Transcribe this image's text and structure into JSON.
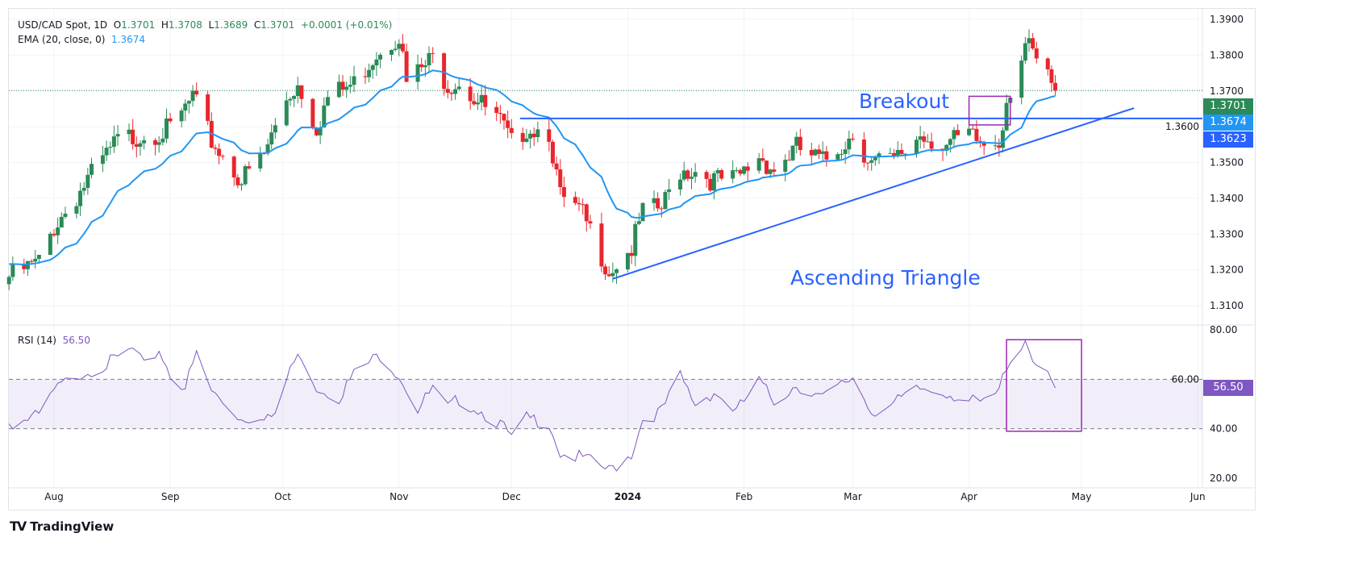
{
  "header": {
    "symbol": "USD/CAD Spot, 1D",
    "o_label": "O",
    "open": "1.3701",
    "h_label": "H",
    "high": "1.3708",
    "l_label": "L",
    "low": "1.3689",
    "c_label": "C",
    "close": "1.3701",
    "change": "+0.0001 (+0.01%)",
    "ema_label": "EMA (20, close, 0)",
    "ema_value": "1.3674",
    "rsi_label": "RSI (14)",
    "rsi_value": "56.50"
  },
  "price_labels": {
    "last": "1.3701",
    "ema": "1.3674",
    "resistance": "1.3623",
    "rsi": "56.50"
  },
  "colors": {
    "up": "#2b8a57",
    "down": "#e8262c",
    "ema": "#2196f3",
    "trend": "#2962ff",
    "rsi": "#7e57c2",
    "box": "#9c27b0"
  },
  "brand": "TradingView",
  "chart_data": {
    "type": "candlestick",
    "title": "USD/CAD Spot, 1D",
    "annotations": [
      "Breakout",
      "Ascending Triangle"
    ],
    "price_axis": {
      "ticks": [
        "1.3900",
        "1.3800",
        "1.3700",
        "1.3600",
        "1.3500",
        "1.3400",
        "1.3300",
        "1.3200",
        "1.3100"
      ],
      "range": [
        1.31,
        1.39
      ]
    },
    "rsi_axis": {
      "ticks": [
        "80.00",
        "60.00",
        "40.00",
        "20.00"
      ],
      "range": [
        20,
        80
      ],
      "band": [
        40,
        60
      ]
    },
    "x_ticks": [
      {
        "label": "Aug",
        "date": "2023-08-01"
      },
      {
        "label": "Sep",
        "date": "2023-09-01"
      },
      {
        "label": "Oct",
        "date": "2023-10-01"
      },
      {
        "label": "Nov",
        "date": "2023-11-01"
      },
      {
        "label": "Dec",
        "date": "2023-12-01"
      },
      {
        "label": "2024",
        "date": "2024-01-01"
      },
      {
        "label": "Feb",
        "date": "2024-02-01"
      },
      {
        "label": "Mar",
        "date": "2024-03-01"
      },
      {
        "label": "Apr",
        "date": "2024-04-01"
      },
      {
        "label": "May",
        "date": "2024-05-01"
      },
      {
        "label": "Jun",
        "date": "2024-06-01"
      }
    ],
    "close_anchors": [
      [
        "2023-07-20",
        1.318
      ],
      [
        "2023-07-28",
        1.322
      ],
      [
        "2023-08-01",
        1.332
      ],
      [
        "2023-08-10",
        1.345
      ],
      [
        "2023-08-18",
        1.356
      ],
      [
        "2023-08-25",
        1.358
      ],
      [
        "2023-09-01",
        1.359
      ],
      [
        "2023-09-07",
        1.368
      ],
      [
        "2023-09-12",
        1.356
      ],
      [
        "2023-09-20",
        1.345
      ],
      [
        "2023-09-26",
        1.352
      ],
      [
        "2023-10-02",
        1.368
      ],
      [
        "2023-10-05",
        1.372
      ],
      [
        "2023-10-10",
        1.36
      ],
      [
        "2023-10-13",
        1.368
      ],
      [
        "2023-10-20",
        1.372
      ],
      [
        "2023-10-26",
        1.381
      ],
      [
        "2023-11-01",
        1.386
      ],
      [
        "2023-11-03",
        1.372
      ],
      [
        "2023-11-10",
        1.379
      ],
      [
        "2023-11-14",
        1.372
      ],
      [
        "2023-11-17",
        1.373
      ],
      [
        "2023-11-22",
        1.367
      ],
      [
        "2023-11-28",
        1.361
      ],
      [
        "2023-12-01",
        1.355
      ],
      [
        "2023-12-05",
        1.36
      ],
      [
        "2023-12-11",
        1.359
      ],
      [
        "2023-12-14",
        1.34
      ],
      [
        "2023-12-20",
        1.335
      ],
      [
        "2023-12-27",
        1.32
      ],
      [
        "2024-01-02",
        1.326
      ],
      [
        "2024-01-05",
        1.336
      ],
      [
        "2024-01-10",
        1.337
      ],
      [
        "2024-01-15",
        1.348
      ],
      [
        "2024-01-19",
        1.348
      ],
      [
        "2024-01-24",
        1.345
      ],
      [
        "2024-01-30",
        1.345
      ],
      [
        "2024-02-05",
        1.352
      ],
      [
        "2024-02-09",
        1.348
      ],
      [
        "2024-02-15",
        1.354
      ],
      [
        "2024-02-22",
        1.35
      ],
      [
        "2024-03-01",
        1.358
      ],
      [
        "2024-03-06",
        1.35
      ],
      [
        "2024-03-12",
        1.35
      ],
      [
        "2024-03-19",
        1.358
      ],
      [
        "2024-03-26",
        1.355
      ],
      [
        "2024-04-01",
        1.357
      ],
      [
        "2024-04-05",
        1.355
      ],
      [
        "2024-04-09",
        1.356
      ],
      [
        "2024-04-11",
        1.368
      ],
      [
        "2024-04-16",
        1.383
      ],
      [
        "2024-04-19",
        1.378
      ],
      [
        "2024-04-24",
        1.3701
      ]
    ],
    "rsi_anchors": [
      [
        "2023-07-20",
        42
      ],
      [
        "2023-07-28",
        45
      ],
      [
        "2023-08-01",
        55
      ],
      [
        "2023-08-07",
        62
      ],
      [
        "2023-08-15",
        66
      ],
      [
        "2023-08-22",
        72
      ],
      [
        "2023-08-25",
        65
      ],
      [
        "2023-08-29",
        72
      ],
      [
        "2023-09-01",
        62
      ],
      [
        "2023-09-05",
        57
      ],
      [
        "2023-09-08",
        70
      ],
      [
        "2023-09-12",
        55
      ],
      [
        "2023-09-20",
        44
      ],
      [
        "2023-09-26",
        46
      ],
      [
        "2023-09-29",
        44
      ],
      [
        "2023-10-03",
        65
      ],
      [
        "2023-10-06",
        70
      ],
      [
        "2023-10-10",
        57
      ],
      [
        "2023-10-16",
        53
      ],
      [
        "2023-10-20",
        62
      ],
      [
        "2023-10-27",
        70
      ],
      [
        "2023-11-01",
        62
      ],
      [
        "2023-11-06",
        48
      ],
      [
        "2023-11-10",
        56
      ],
      [
        "2023-11-14",
        48
      ],
      [
        "2023-11-17",
        52
      ],
      [
        "2023-11-22",
        48
      ],
      [
        "2023-11-28",
        42
      ],
      [
        "2023-12-01",
        36
      ],
      [
        "2023-12-05",
        44
      ],
      [
        "2023-12-11",
        43
      ],
      [
        "2023-12-14",
        30
      ],
      [
        "2023-12-20",
        28
      ],
      [
        "2023-12-27",
        23
      ],
      [
        "2024-01-02",
        30
      ],
      [
        "2024-01-05",
        44
      ],
      [
        "2024-01-10",
        47
      ],
      [
        "2024-01-15",
        61
      ],
      [
        "2024-01-19",
        50
      ],
      [
        "2024-01-24",
        55
      ],
      [
        "2024-01-30",
        47
      ],
      [
        "2024-02-05",
        59
      ],
      [
        "2024-02-09",
        51
      ],
      [
        "2024-02-15",
        58
      ],
      [
        "2024-02-22",
        52
      ],
      [
        "2024-03-01",
        61
      ],
      [
        "2024-03-06",
        47
      ],
      [
        "2024-03-12",
        50
      ],
      [
        "2024-03-19",
        56
      ],
      [
        "2024-03-26",
        55
      ],
      [
        "2024-04-01",
        51
      ],
      [
        "2024-04-05",
        50
      ],
      [
        "2024-04-09",
        55
      ],
      [
        "2024-04-11",
        66
      ],
      [
        "2024-04-16",
        76
      ],
      [
        "2024-04-19",
        66
      ],
      [
        "2024-04-24",
        56.5
      ]
    ],
    "resistance": {
      "price": 1.3623,
      "from": "2023-12-05"
    },
    "support_line": {
      "from": [
        "2023-12-28",
        1.3175
      ],
      "to": [
        "2024-05-15",
        1.3652
      ]
    },
    "breakout_box": {
      "from": "2024-04-01",
      "to": "2024-04-12",
      "price": [
        1.3605,
        1.3685
      ]
    },
    "rsi_box": {
      "from": "2024-04-11",
      "to": "2024-05-01",
      "rsi": [
        39,
        76
      ]
    }
  }
}
